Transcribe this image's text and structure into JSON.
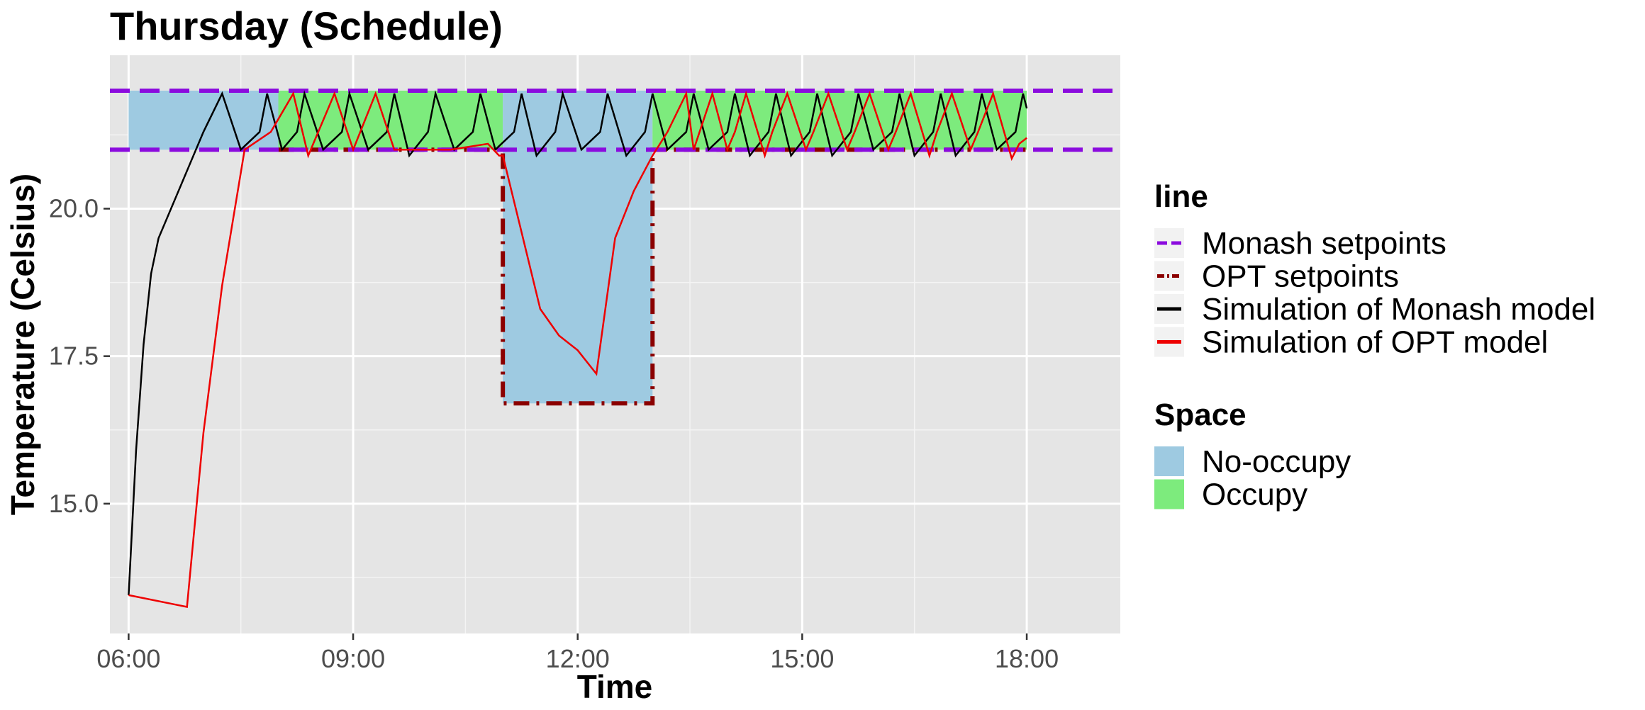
{
  "chart_data": {
    "type": "line",
    "title": "Thursday (Schedule)",
    "xlabel": "Time",
    "ylabel": "Temperature (Celsius)",
    "x_unit": "hours",
    "xlim": [
      5.75,
      19.25
    ],
    "ylim": [
      12.8,
      22.6
    ],
    "x_ticks": [
      {
        "value": 6,
        "label": "06:00"
      },
      {
        "value": 9,
        "label": "09:00"
      },
      {
        "value": 12,
        "label": "12:00"
      },
      {
        "value": 15,
        "label": "15:00"
      },
      {
        "value": 18,
        "label": "18:00"
      }
    ],
    "y_ticks": [
      {
        "value": 15.0,
        "label": "15.0"
      },
      {
        "value": 17.5,
        "label": "17.5"
      },
      {
        "value": 20.0,
        "label": "20.0"
      }
    ],
    "y_minor_ticks": [
      13.75,
      16.25,
      18.75,
      21.25
    ],
    "x_minor_ticks": [
      7.5,
      10.5,
      13.5,
      16.5
    ],
    "grid": true,
    "panel_color": "#e5e5e5",
    "spaces": [
      {
        "name": "No-occupy",
        "color": "#9ecae1",
        "x0": 6.0,
        "x1": 8.0,
        "y0": 21.0,
        "y1": 22.0
      },
      {
        "name": "Occupy",
        "color": "#7deb7d",
        "x0": 8.0,
        "x1": 11.0,
        "y0": 21.0,
        "y1": 22.0
      },
      {
        "name": "No-occupy",
        "color": "#9ecae1",
        "x0": 11.0,
        "x1": 13.0,
        "y0": 21.0,
        "y1": 22.0
      },
      {
        "name": "No-occupy",
        "color": "#9ecae1",
        "x0": 11.0,
        "x1": 13.0,
        "y0": 16.7,
        "y1": 21.0
      },
      {
        "name": "Occupy",
        "color": "#7deb7d",
        "x0": 13.0,
        "x1": 18.0,
        "y0": 21.0,
        "y1": 22.0
      }
    ],
    "monash_setpoints": {
      "name": "Monash setpoints",
      "color": "#8b0bde",
      "lower": 21.0,
      "upper": 22.0
    },
    "opt_setpoints": {
      "name": "OPT setpoints",
      "color": "#8b0000",
      "x": [
        8.0,
        11.0,
        11.0,
        13.0,
        13.0,
        18.0
      ],
      "y": [
        21.0,
        21.0,
        16.7,
        16.7,
        21.0,
        21.0
      ]
    },
    "series": [
      {
        "name": "Simulation of Monash model",
        "color": "#000000",
        "x": [
          6.0,
          6.1,
          6.2,
          6.3,
          6.4,
          6.6,
          6.8,
          7.0,
          7.25,
          7.5,
          7.75,
          7.85,
          8.05,
          8.25,
          8.35,
          8.6,
          8.85,
          8.95,
          9.2,
          9.45,
          9.55,
          9.75,
          10.0,
          10.1,
          10.35,
          10.6,
          10.7,
          10.9,
          11.15,
          11.25,
          11.45,
          11.7,
          11.8,
          12.05,
          12.3,
          12.4,
          12.65,
          12.9,
          13.0,
          13.2,
          13.45,
          13.55,
          13.75,
          14.0,
          14.1,
          14.3,
          14.55,
          14.65,
          14.85,
          15.1,
          15.2,
          15.4,
          15.65,
          15.75,
          15.95,
          16.2,
          16.3,
          16.5,
          16.75,
          16.85,
          17.05,
          17.3,
          17.4,
          17.6,
          17.85,
          17.95,
          18.0
        ],
        "y": [
          13.45,
          15.9,
          17.7,
          18.9,
          19.5,
          20.1,
          20.7,
          21.3,
          21.95,
          21.0,
          21.3,
          21.95,
          21.0,
          21.3,
          21.95,
          21.0,
          21.3,
          21.95,
          21.0,
          21.3,
          21.95,
          20.9,
          21.3,
          21.95,
          21.0,
          21.3,
          21.95,
          21.0,
          21.3,
          21.95,
          20.9,
          21.3,
          21.95,
          21.0,
          21.3,
          21.95,
          20.9,
          21.3,
          21.95,
          21.0,
          21.3,
          21.95,
          21.0,
          21.3,
          21.95,
          20.9,
          21.3,
          21.95,
          20.9,
          21.3,
          21.95,
          20.9,
          21.3,
          21.95,
          21.0,
          21.3,
          21.95,
          20.9,
          21.3,
          21.95,
          20.9,
          21.3,
          21.95,
          21.0,
          21.3,
          21.95,
          21.7
        ]
      },
      {
        "name": "Simulation of OPT model",
        "color": "#ee0000",
        "x": [
          6.0,
          6.78,
          7.0,
          7.25,
          7.55,
          7.9,
          8.2,
          8.4,
          8.75,
          9.0,
          9.3,
          9.55,
          10.3,
          10.8,
          10.95,
          11.0,
          11.25,
          11.5,
          11.75,
          12.0,
          12.25,
          12.5,
          12.75,
          13.0,
          13.2,
          13.45,
          13.55,
          13.8,
          14.0,
          14.1,
          14.25,
          14.5,
          14.6,
          14.8,
          15.05,
          15.15,
          15.35,
          15.6,
          15.7,
          15.9,
          16.15,
          16.25,
          16.45,
          16.7,
          16.8,
          17.0,
          17.25,
          17.35,
          17.55,
          17.8,
          17.9,
          18.0
        ],
        "y": [
          13.45,
          13.25,
          16.2,
          18.7,
          21.0,
          21.3,
          21.95,
          20.9,
          21.95,
          21.0,
          21.95,
          21.0,
          21.0,
          21.1,
          20.9,
          20.9,
          19.6,
          18.3,
          17.85,
          17.6,
          17.2,
          19.5,
          20.3,
          20.9,
          21.3,
          21.95,
          21.0,
          21.95,
          21.0,
          21.3,
          21.95,
          20.9,
          21.3,
          21.95,
          21.0,
          21.3,
          21.95,
          21.0,
          21.3,
          21.95,
          21.0,
          21.3,
          21.95,
          20.9,
          21.3,
          21.95,
          21.0,
          21.3,
          21.95,
          20.85,
          21.1,
          21.2
        ]
      }
    ],
    "legend": {
      "placement": "right",
      "line_title": "line",
      "line_items": [
        "Monash setpoints",
        "OPT setpoints",
        "Simulation of Monash model",
        "Simulation of OPT model"
      ],
      "space_title": "Space",
      "space_items": [
        {
          "name": "No-occupy",
          "color": "#9ecae1"
        },
        {
          "name": "Occupy",
          "color": "#7deb7d"
        }
      ]
    }
  }
}
